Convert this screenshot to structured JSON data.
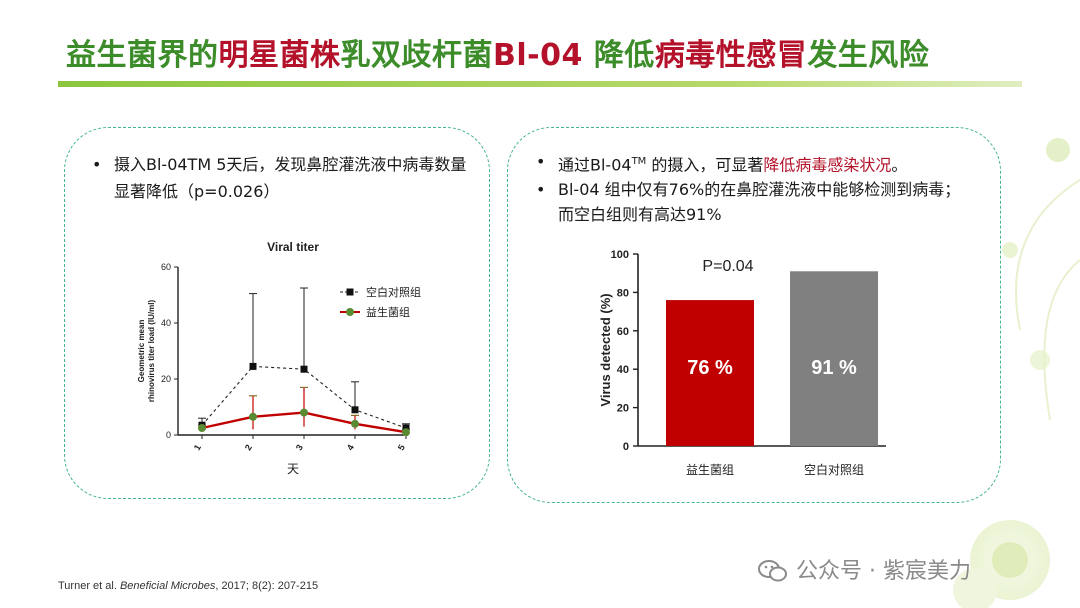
{
  "title": {
    "part1": "益生菌界的",
    "part2": "明星菌株",
    "part3": "乳双歧杆菌",
    "part4": "Bl-04",
    "part5": "降低",
    "part6": "病毒性感冒",
    "part7": "发生风险"
  },
  "left_panel": {
    "bullet_text": "摄入Bl-04TM 5天后，发现鼻腔灌洗液中病毒数量显著降低（p=0.026）"
  },
  "right_panel": {
    "bullet1_a": "通过Bl-04",
    "bullet1_tm": "TM",
    "bullet1_b": " 的摄入，可显著",
    "bullet1_red": "降低病毒感染状况",
    "bullet1_end": "。",
    "bullet2": "Bl-04 组中仅有76%的在鼻腔灌洗液中能够检测到病毒；而空白组则有高达91%"
  },
  "footer": {
    "author": "Turner et al. ",
    "journal": "Beneficial Microbes",
    "rest": ", 2017; 8(2): 207-215"
  },
  "watermark": {
    "text": "公众号 · 紫宸美力",
    "icon": "wechat-icon"
  },
  "colors": {
    "title_green": "#3c8c2a",
    "title_red": "#b3122a",
    "bar_red": "#c00000",
    "bar_gray": "#808080",
    "probiotic_line": "#c00000",
    "probiotic_marker": "#5a8a32",
    "panel_border": "#45b58a"
  },
  "chart_data": [
    {
      "type": "line",
      "title": "Viral titer",
      "xlabel": "天",
      "ylabel": "Geometric mean rhinovirus titer load (IU/ml)",
      "x": [
        1,
        2,
        3,
        4,
        5
      ],
      "ylim": [
        0,
        60
      ],
      "yticks": [
        0,
        20,
        40,
        60
      ],
      "legend_position": "top-right",
      "series": [
        {
          "name": "空白对照组",
          "values": [
            3.5,
            24.5,
            23.5,
            9,
            2.5
          ],
          "error_upper": [
            6,
            50.5,
            52.5,
            19,
            4
          ]
        },
        {
          "name": "益生菌组",
          "values": [
            2.5,
            6.5,
            8,
            4,
            1
          ],
          "error_upper": [
            3.5,
            14,
            17,
            7,
            2
          ],
          "error_lower": [
            1.5,
            2,
            3,
            2,
            0
          ]
        }
      ]
    },
    {
      "type": "bar",
      "categories": [
        "益生菌组",
        "空白对照组"
      ],
      "values": [
        76,
        91
      ],
      "value_labels": [
        "76 %",
        "91 %"
      ],
      "ylabel": "Virus detected (%)",
      "ylim": [
        0,
        100
      ],
      "yticks": [
        0,
        20,
        40,
        60,
        80,
        100
      ],
      "annotation": "P=0.04"
    }
  ]
}
